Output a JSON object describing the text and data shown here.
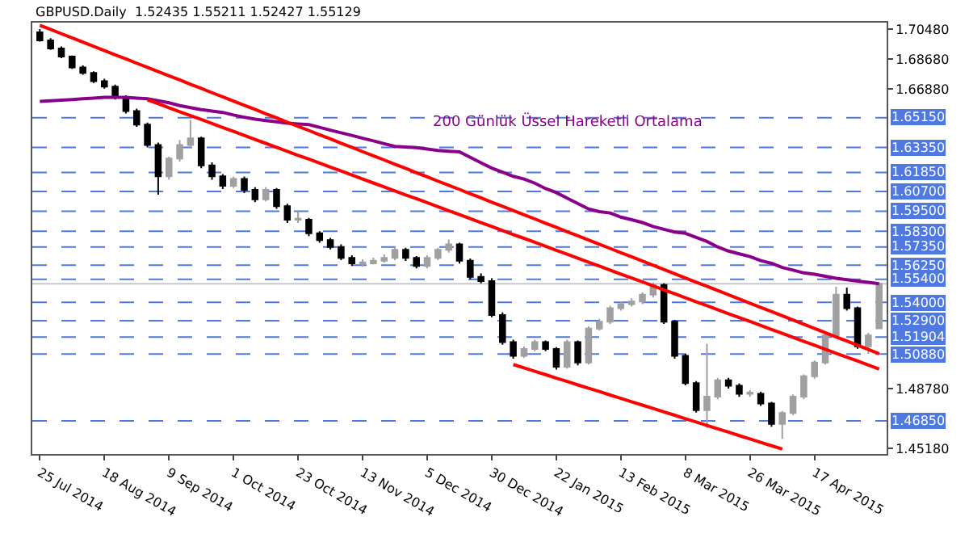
{
  "chart_data": {
    "type": "candlestick",
    "title": "GBPUSD.Daily  1.52435 1.55211 1.52427 1.55129",
    "categories": [
      "25 Jul 2014",
      null,
      null,
      null,
      null,
      null,
      "18 Aug 2014",
      null,
      null,
      null,
      null,
      null,
      "9 Sep 2014",
      null,
      null,
      null,
      null,
      null,
      "1 Oct 2014",
      null,
      null,
      null,
      null,
      null,
      "23 Oct 2014",
      null,
      null,
      null,
      null,
      null,
      "13 Nov 2014",
      null,
      null,
      null,
      null,
      null,
      "5 Dec 2014",
      null,
      null,
      null,
      null,
      null,
      "30 Dec 2014",
      null,
      null,
      null,
      null,
      null,
      "22 Jan 2015",
      null,
      null,
      null,
      null,
      null,
      "13 Feb 2015",
      null,
      null,
      null,
      null,
      null,
      "8 Mar 2015",
      null,
      null,
      null,
      null,
      null,
      "26 Mar 2015",
      null,
      null,
      null,
      null,
      null,
      "17 Apr 2015",
      null,
      null,
      null,
      null,
      null,
      null
    ],
    "ohlc": [
      [
        1.703,
        1.705,
        1.6975,
        1.6982
      ],
      [
        1.6982,
        1.6995,
        1.6925,
        1.6933
      ],
      [
        1.6933,
        1.6945,
        1.6875,
        1.6884
      ],
      [
        1.6884,
        1.689,
        1.681,
        1.6818
      ],
      [
        1.6818,
        1.683,
        1.6775,
        1.6785
      ],
      [
        1.6785,
        1.6795,
        1.6725,
        1.6736
      ],
      [
        1.6736,
        1.675,
        1.669,
        1.6703
      ],
      [
        1.6703,
        1.6715,
        1.6625,
        1.6638
      ],
      [
        1.6638,
        1.665,
        1.654,
        1.6555
      ],
      [
        1.6555,
        1.657,
        1.646,
        1.6473
      ],
      [
        1.6473,
        1.6485,
        1.6335,
        1.635
      ],
      [
        1.635,
        1.6365,
        1.605,
        1.6161
      ],
      [
        1.6161,
        1.628,
        1.614,
        1.6268
      ],
      [
        1.6268,
        1.638,
        1.625,
        1.635
      ],
      [
        1.635,
        1.65,
        1.633,
        1.6391
      ],
      [
        1.6391,
        1.64,
        1.621,
        1.6227
      ],
      [
        1.6227,
        1.6245,
        1.614,
        1.6161
      ],
      [
        1.6161,
        1.6175,
        1.6085,
        1.6104
      ],
      [
        1.6104,
        1.616,
        1.609,
        1.6145
      ],
      [
        1.6145,
        1.616,
        1.606,
        1.6079
      ],
      [
        1.6079,
        1.6095,
        1.6005,
        1.6022
      ],
      [
        1.6022,
        1.6095,
        1.601,
        1.6079
      ],
      [
        1.6079,
        1.609,
        1.5965,
        1.5981
      ],
      [
        1.5981,
        1.5995,
        1.588,
        1.5899
      ],
      [
        1.5899,
        1.595,
        1.588,
        1.5905
      ],
      [
        1.5899,
        1.591,
        1.58,
        1.5817
      ],
      [
        1.5817,
        1.583,
        1.576,
        1.5776
      ],
      [
        1.5776,
        1.579,
        1.572,
        1.5735
      ],
      [
        1.5735,
        1.575,
        1.5655,
        1.5669
      ],
      [
        1.5669,
        1.5685,
        1.562,
        1.5636
      ],
      [
        1.5636,
        1.566,
        1.5615,
        1.5642
      ],
      [
        1.5636,
        1.567,
        1.563,
        1.5652
      ],
      [
        1.5652,
        1.569,
        1.564,
        1.5669
      ],
      [
        1.5669,
        1.5735,
        1.5655,
        1.5718
      ],
      [
        1.5718,
        1.573,
        1.565,
        1.5669
      ],
      [
        1.5669,
        1.568,
        1.5605,
        1.562
      ],
      [
        1.562,
        1.5685,
        1.5605,
        1.5669
      ],
      [
        1.5669,
        1.573,
        1.5655,
        1.5718
      ],
      [
        1.5718,
        1.578,
        1.57,
        1.5751
      ],
      [
        1.5751,
        1.576,
        1.5635,
        1.5652
      ],
      [
        1.5652,
        1.5665,
        1.554,
        1.5554
      ],
      [
        1.5554,
        1.5575,
        1.5515,
        1.5529
      ],
      [
        1.5529,
        1.5545,
        1.531,
        1.5324
      ],
      [
        1.5324,
        1.534,
        1.5145,
        1.516
      ],
      [
        1.516,
        1.5175,
        1.506,
        1.5078
      ],
      [
        1.5078,
        1.5135,
        1.5065,
        1.5119
      ],
      [
        1.5119,
        1.5175,
        1.5105,
        1.516
      ],
      [
        1.516,
        1.517,
        1.5105,
        1.5119
      ],
      [
        1.5119,
        1.513,
        1.4995,
        1.5012
      ],
      [
        1.5012,
        1.5175,
        1.5,
        1.516
      ],
      [
        1.516,
        1.517,
        1.502,
        1.5037
      ],
      [
        1.5037,
        1.5255,
        1.5025,
        1.5242
      ],
      [
        1.5242,
        1.53,
        1.523,
        1.5283
      ],
      [
        1.5283,
        1.538,
        1.527,
        1.5365
      ],
      [
        1.5365,
        1.5405,
        1.535,
        1.539
      ],
      [
        1.539,
        1.5425,
        1.5375,
        1.5406
      ],
      [
        1.5406,
        1.546,
        1.539,
        1.5447
      ],
      [
        1.5447,
        1.552,
        1.543,
        1.5505
      ],
      [
        1.5505,
        1.5515,
        1.527,
        1.5283
      ],
      [
        1.5283,
        1.5295,
        1.506,
        1.5078
      ],
      [
        1.5078,
        1.509,
        1.49,
        1.4913
      ],
      [
        1.4913,
        1.4925,
        1.4735,
        1.4749
      ],
      [
        1.4749,
        1.515,
        1.4642,
        1.4831
      ],
      [
        1.4831,
        1.4945,
        1.4815,
        1.493
      ],
      [
        1.493,
        1.4945,
        1.488,
        1.4897
      ],
      [
        1.4897,
        1.491,
        1.483,
        1.4848
      ],
      [
        1.4848,
        1.487,
        1.483,
        1.4855
      ],
      [
        1.4848,
        1.486,
        1.4775,
        1.479
      ],
      [
        1.479,
        1.48,
        1.465,
        1.4667
      ],
      [
        1.4667,
        1.4745,
        1.4577,
        1.4733
      ],
      [
        1.4733,
        1.4845,
        1.472,
        1.4831
      ],
      [
        1.4831,
        1.4965,
        1.4815,
        1.4954
      ],
      [
        1.4954,
        1.505,
        1.494,
        1.5037
      ],
      [
        1.5037,
        1.5215,
        1.5025,
        1.5201
      ],
      [
        1.5201,
        1.5495,
        1.519,
        1.5447
      ],
      [
        1.5447,
        1.549,
        1.535,
        1.5365
      ],
      [
        1.5365,
        1.5375,
        1.512,
        1.5135
      ],
      [
        1.5135,
        1.5215,
        1.509,
        1.5201
      ],
      [
        1.52435,
        1.55211,
        1.52427,
        1.55129
      ]
    ],
    "colors": [
      "#000000",
      "#000000",
      "#000000",
      "#000000",
      "#000000",
      "#000000",
      "#000000",
      "#000000",
      "#000000",
      "#000000",
      "#000000",
      "#000000",
      "#a0a0a0",
      "#a0a0a0",
      "#a0a0a0",
      "#000000",
      "#000000",
      "#000000",
      "#a0a0a0",
      "#000000",
      "#000000",
      "#a0a0a0",
      "#000000",
      "#000000",
      "#a0a0a0",
      "#000000",
      "#000000",
      "#000000",
      "#000000",
      "#000000",
      "#a0a0a0",
      "#a0a0a0",
      "#a0a0a0",
      "#a0a0a0",
      "#000000",
      "#000000",
      "#a0a0a0",
      "#a0a0a0",
      "#a0a0a0",
      "#000000",
      "#000000",
      "#000000",
      "#000000",
      "#000000",
      "#000000",
      "#a0a0a0",
      "#a0a0a0",
      "#000000",
      "#000000",
      "#a0a0a0",
      "#000000",
      "#a0a0a0",
      "#a0a0a0",
      "#a0a0a0",
      "#a0a0a0",
      "#a0a0a0",
      "#a0a0a0",
      "#a0a0a0",
      "#000000",
      "#000000",
      "#000000",
      "#000000",
      "#a0a0a0",
      "#a0a0a0",
      "#000000",
      "#000000",
      "#a0a0a0",
      "#000000",
      "#000000",
      "#a0a0a0",
      "#a0a0a0",
      "#a0a0a0",
      "#a0a0a0",
      "#a0a0a0",
      "#a0a0a0",
      "#000000",
      "#000000",
      "#a0a0a0",
      "#a0a0a0"
    ],
    "series": [
      {
        "type": "line",
        "name": "200 Günlük Üssel Hareketli Ortalama",
        "color": "#8b008b",
        "values": [
          1.6613,
          1.6617,
          1.6621,
          1.6625,
          1.6629,
          1.6633,
          1.6638,
          1.6638,
          1.6638,
          1.6633,
          1.6629,
          1.6617,
          1.6605,
          1.6588,
          1.6576,
          1.6564,
          1.6555,
          1.6547,
          1.6531,
          1.6518,
          1.6506,
          1.6498,
          1.649,
          1.6482,
          1.6477,
          1.6473,
          1.6457,
          1.644,
          1.6424,
          1.6408,
          1.6391,
          1.6375,
          1.6358,
          1.6342,
          1.6338,
          1.6334,
          1.6326,
          1.6317,
          1.6313,
          1.6309,
          1.6276,
          1.6243,
          1.6211,
          1.6186,
          1.6161,
          1.6145,
          1.612,
          1.6087,
          1.6063,
          1.603,
          1.5997,
          1.5964,
          1.5948,
          1.594,
          1.5915,
          1.5899,
          1.5882,
          1.5858,
          1.5841,
          1.5825,
          1.5817,
          1.5792,
          1.5768,
          1.5735,
          1.571,
          1.5693,
          1.5677,
          1.5652,
          1.5636,
          1.5611,
          1.5595,
          1.5578,
          1.557,
          1.5558,
          1.5546,
          1.5537,
          1.5529,
          1.5521,
          1.5513
        ]
      },
      {
        "type": "line",
        "color": "#ff0000",
        "values": [
          1.7073,
          1.7048,
          1.7022,
          1.6997,
          1.6971,
          1.6946,
          1.692,
          1.6895,
          1.687,
          1.6844,
          1.6819,
          1.6793,
          1.6768,
          1.6743,
          1.6717,
          1.6692,
          1.6666,
          1.6641,
          1.6615,
          1.659,
          1.6565,
          1.6539,
          1.6514,
          1.6488,
          1.6463,
          1.6438,
          1.6412,
          1.6387,
          1.6361,
          1.6336,
          1.631,
          1.6285,
          1.626,
          1.6234,
          1.6209,
          1.6183,
          1.6158,
          1.6132,
          1.6107,
          1.6082,
          1.6056,
          1.6031,
          1.6005,
          1.598,
          1.5955,
          1.5929,
          1.5904,
          1.5878,
          1.5853,
          1.5827,
          1.5802,
          1.5777,
          1.5751,
          1.5726,
          1.57,
          1.5675,
          1.565,
          1.5624,
          1.5599,
          1.5573,
          1.5548,
          1.5522,
          1.5497,
          1.5472,
          1.5446,
          1.5421,
          1.5395,
          1.537,
          1.5345,
          1.5319,
          1.5294,
          1.5268,
          1.5243,
          1.5217,
          1.5192,
          1.5167,
          1.5141,
          1.5116,
          1.509
        ]
      },
      {
        "type": "line",
        "color": "#ff0000",
        "values": [
          null,
          null,
          null,
          null,
          null,
          null,
          null,
          null,
          null,
          null,
          1.6623,
          1.6599,
          1.6575,
          1.6551,
          1.6527,
          1.6504,
          1.648,
          1.6456,
          1.6432,
          1.6408,
          1.6384,
          1.636,
          1.6336,
          1.6312,
          1.6288,
          1.6265,
          1.6241,
          1.6217,
          1.6193,
          1.6169,
          1.6145,
          1.6121,
          1.6097,
          1.6073,
          1.6049,
          1.6026,
          1.6002,
          1.5978,
          1.5954,
          1.593,
          1.5906,
          1.5882,
          1.5858,
          1.5834,
          1.581,
          1.5787,
          1.5763,
          1.5739,
          1.5715,
          1.5691,
          1.5667,
          1.5643,
          1.5619,
          1.5595,
          1.5571,
          1.5548,
          1.5524,
          1.55,
          1.5476,
          1.5452,
          1.5428,
          1.5404,
          1.538,
          1.5356,
          1.5332,
          1.5309,
          1.5285,
          1.5261,
          1.5237,
          1.5213,
          1.5189,
          1.5165,
          1.5141,
          1.5117,
          1.5093,
          1.507,
          1.5046,
          1.5022,
          1.4998
        ]
      },
      {
        "type": "line",
        "color": "#ff0000",
        "values": [
          null,
          null,
          null,
          null,
          null,
          null,
          null,
          null,
          null,
          null,
          null,
          null,
          null,
          null,
          null,
          null,
          null,
          null,
          null,
          null,
          null,
          null,
          null,
          null,
          null,
          null,
          null,
          null,
          null,
          null,
          null,
          null,
          null,
          null,
          null,
          null,
          null,
          null,
          null,
          null,
          null,
          null,
          null,
          null,
          1.5025,
          1.5005,
          1.4984,
          1.4964,
          1.4943,
          1.4923,
          1.4902,
          1.4882,
          1.4862,
          1.4841,
          1.4821,
          1.48,
          1.478,
          1.476,
          1.4739,
          1.4719,
          1.4698,
          1.4678,
          1.4657,
          1.4637,
          1.4617,
          1.4596,
          1.4576,
          1.4555,
          1.4535,
          1.4515,
          null,
          null,
          null,
          null,
          null,
          null,
          null,
          null,
          null
        ]
      }
    ],
    "ylim": [
      1.4485,
      1.7089
    ],
    "yticks": [
      {
        "value": 1.7048,
        "label": "1.70480"
      },
      {
        "value": 1.6868,
        "label": "1.68680"
      },
      {
        "value": 1.6688,
        "label": "1.66880"
      },
      {
        "value": 1.4878,
        "label": "1.48780"
      },
      {
        "value": 1.4518,
        "label": "1.45180"
      }
    ],
    "ref_lines": [
      {
        "axis": "y",
        "value": 1.6515,
        "label": "1.65150",
        "color": "#4f78e0",
        "line_style": "dashed"
      },
      {
        "axis": "y",
        "value": 1.6335,
        "label": "1.63350",
        "color": "#4f78e0",
        "line_style": "dashed"
      },
      {
        "axis": "y",
        "value": 1.6185,
        "label": "1.61850",
        "color": "#4f78e0",
        "line_style": "dashed"
      },
      {
        "axis": "y",
        "value": 1.607,
        "label": "1.60700",
        "color": "#4f78e0",
        "line_style": "dashed"
      },
      {
        "axis": "y",
        "value": 1.595,
        "label": "1.59500",
        "color": "#4f78e0",
        "line_style": "dashed"
      },
      {
        "axis": "y",
        "value": 1.583,
        "label": "1.58300",
        "color": "#4f78e0",
        "line_style": "dashed"
      },
      {
        "axis": "y",
        "value": 1.5735,
        "label": "1.57350",
        "color": "#4f78e0",
        "line_style": "dashed"
      },
      {
        "axis": "y",
        "value": 1.5625,
        "label": "1.56250",
        "color": "#4f78e0",
        "line_style": "dashed"
      },
      {
        "axis": "y",
        "value": 1.554,
        "label": "1.55400",
        "color": "#4f78e0",
        "line_style": "dashed"
      },
      {
        "axis": "y",
        "value": 1.55129,
        "label": null,
        "color": "#c8c8c8",
        "line_style": "solid"
      },
      {
        "axis": "y",
        "value": 1.54,
        "label": "1.54000",
        "color": "#4f78e0",
        "line_style": "dashed"
      },
      {
        "axis": "y",
        "value": 1.529,
        "label": "1.52900",
        "color": "#4f78e0",
        "line_style": "dashed"
      },
      {
        "axis": "y",
        "value": 1.51904,
        "label": "1.51904",
        "color": "#4f78e0",
        "line_style": "dashed"
      },
      {
        "axis": "y",
        "value": 1.5088,
        "label": "1.50880",
        "color": "#4f78e0",
        "line_style": "dashed"
      },
      {
        "axis": "y",
        "value": 1.4685,
        "label": "1.46850",
        "color": "#4f78e0",
        "line_style": "dashed"
      }
    ]
  }
}
